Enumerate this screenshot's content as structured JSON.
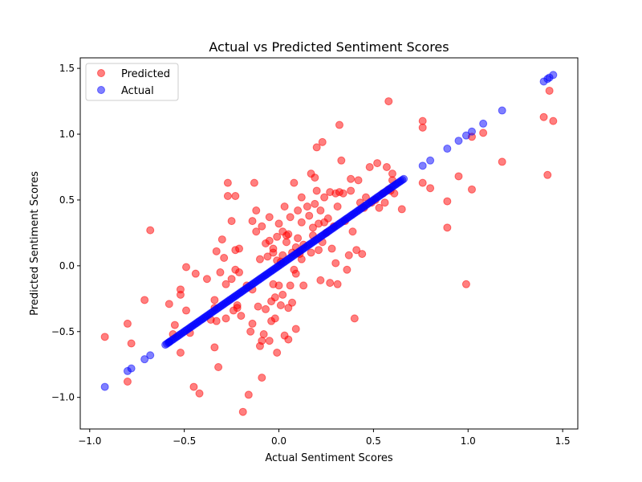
{
  "chart_data": {
    "type": "scatter",
    "title": "Actual vs Predicted Sentiment Scores",
    "xlabel": "Actual Sentiment Scores",
    "ylabel": "Predicted Sentiment Scores",
    "xlim": [
      -1.05,
      1.58
    ],
    "ylim": [
      -1.24,
      1.58
    ],
    "xticks": [
      -1.0,
      -0.5,
      0.0,
      0.5,
      1.0,
      1.5
    ],
    "yticks": [
      -1.0,
      -0.5,
      0.0,
      0.5,
      1.0,
      1.5
    ],
    "xtick_labels": [
      "−1.0",
      "−0.5",
      "0.0",
      "0.5",
      "1.0",
      "1.5"
    ],
    "ytick_labels": [
      "−1.0",
      "−0.5",
      "0.0",
      "0.5",
      "1.0",
      "1.5"
    ],
    "grid": false,
    "legend_position": "top-left",
    "series": [
      {
        "name": "Predicted",
        "color": "#ff0000",
        "opacity": 0.5,
        "points": [
          [
            -0.92,
            -0.54
          ],
          [
            -0.8,
            -0.44
          ],
          [
            -0.8,
            -0.88
          ],
          [
            -0.78,
            -0.59
          ],
          [
            -0.71,
            -0.26
          ],
          [
            -0.68,
            0.27
          ],
          [
            -0.58,
            -0.29
          ],
          [
            -0.56,
            -0.52
          ],
          [
            -0.55,
            -0.45
          ],
          [
            -0.52,
            -0.66
          ],
          [
            -0.52,
            -0.18
          ],
          [
            -0.52,
            -0.22
          ],
          [
            -0.49,
            -0.34
          ],
          [
            -0.49,
            -0.01
          ],
          [
            -0.47,
            -0.51
          ],
          [
            -0.45,
            -0.92
          ],
          [
            -0.44,
            -0.06
          ],
          [
            -0.42,
            -0.97
          ],
          [
            -0.38,
            -0.1
          ],
          [
            -0.36,
            -0.41
          ],
          [
            -0.34,
            -0.32
          ],
          [
            -0.34,
            -0.62
          ],
          [
            -0.34,
            -0.26
          ],
          [
            -0.33,
            0.11
          ],
          [
            -0.33,
            -0.42
          ],
          [
            -0.32,
            -0.77
          ],
          [
            -0.31,
            -0.05
          ],
          [
            -0.3,
            0.2
          ],
          [
            -0.29,
            0.06
          ],
          [
            -0.28,
            -0.14
          ],
          [
            -0.28,
            -0.4
          ],
          [
            -0.27,
            0.53
          ],
          [
            -0.27,
            0.63
          ],
          [
            -0.25,
            -0.1
          ],
          [
            -0.25,
            0.34
          ],
          [
            -0.24,
            -0.34
          ],
          [
            -0.23,
            -0.03
          ],
          [
            -0.23,
            0.12
          ],
          [
            -0.23,
            0.53
          ],
          [
            -0.22,
            -0.3
          ],
          [
            -0.22,
            -0.32
          ],
          [
            -0.21,
            -0.05
          ],
          [
            -0.21,
            0.13
          ],
          [
            -0.2,
            -0.38
          ],
          [
            -0.19,
            -1.11
          ],
          [
            -0.17,
            -0.15
          ],
          [
            -0.16,
            -0.98
          ],
          [
            -0.15,
            -0.5
          ],
          [
            -0.14,
            0.34
          ],
          [
            -0.14,
            -0.18
          ],
          [
            -0.14,
            -0.44
          ],
          [
            -0.13,
            0.63
          ],
          [
            -0.12,
            0.42
          ],
          [
            -0.12,
            0.26
          ],
          [
            -0.11,
            -0.31
          ],
          [
            -0.1,
            -0.61
          ],
          [
            -0.1,
            0.05
          ],
          [
            -0.09,
            -0.57
          ],
          [
            -0.09,
            -0.85
          ],
          [
            -0.09,
            0.3
          ],
          [
            -0.08,
            -0.52
          ],
          [
            -0.07,
            0.17
          ],
          [
            -0.07,
            -0.33
          ],
          [
            -0.06,
            0.07
          ],
          [
            -0.05,
            -0.57
          ],
          [
            -0.05,
            0.19
          ],
          [
            -0.05,
            0.37
          ],
          [
            -0.04,
            -0.27
          ],
          [
            -0.04,
            -0.42
          ],
          [
            -0.03,
            -0.14
          ],
          [
            -0.03,
            0.1
          ],
          [
            -0.03,
            0.13
          ],
          [
            -0.02,
            -0.24
          ],
          [
            -0.02,
            -0.4
          ],
          [
            -0.01,
            0.04
          ],
          [
            -0.01,
            -0.66
          ],
          [
            -0.01,
            0.22
          ],
          [
            0.0,
            -0.15
          ],
          [
            0.0,
            0.32
          ],
          [
            0.01,
            -0.3
          ],
          [
            0.01,
            0.03
          ],
          [
            0.02,
            0.26
          ],
          [
            0.02,
            -0.22
          ],
          [
            0.02,
            0.08
          ],
          [
            0.03,
            -0.53
          ],
          [
            0.03,
            0.45
          ],
          [
            0.04,
            0.23
          ],
          [
            0.04,
            0.18
          ],
          [
            0.05,
            -0.56
          ],
          [
            0.05,
            -0.32
          ],
          [
            0.05,
            0.24
          ],
          [
            0.06,
            -0.15
          ],
          [
            0.06,
            0.37
          ],
          [
            0.07,
            -0.28
          ],
          [
            0.07,
            0.1
          ],
          [
            0.08,
            0.63
          ],
          [
            0.08,
            -0.03
          ],
          [
            0.09,
            0.14
          ],
          [
            0.09,
            -0.48
          ],
          [
            0.09,
            -0.06
          ],
          [
            0.1,
            0.42
          ],
          [
            0.1,
            0.21
          ],
          [
            0.11,
            0.11
          ],
          [
            0.11,
            0.09
          ],
          [
            0.12,
            0.05
          ],
          [
            0.12,
            0.33
          ],
          [
            0.12,
            0.52
          ],
          [
            0.13,
            0.16
          ],
          [
            0.13,
            -0.15
          ],
          [
            0.15,
            0.45
          ],
          [
            0.16,
            0.38
          ],
          [
            0.17,
            0.7
          ],
          [
            0.17,
            0.1
          ],
          [
            0.18,
            0.29
          ],
          [
            0.18,
            0.23
          ],
          [
            0.19,
            0.67
          ],
          [
            0.19,
            0.47
          ],
          [
            0.2,
            0.57
          ],
          [
            0.2,
            0.9
          ],
          [
            0.21,
            0.12
          ],
          [
            0.21,
            0.32
          ],
          [
            0.22,
            -0.11
          ],
          [
            0.22,
            0.42
          ],
          [
            0.23,
            0.18
          ],
          [
            0.23,
            0.94
          ],
          [
            0.24,
            0.52
          ],
          [
            0.24,
            0.33
          ],
          [
            0.25,
            0.25
          ],
          [
            0.26,
            0.36
          ],
          [
            0.27,
            -0.13
          ],
          [
            0.27,
            0.56
          ],
          [
            0.28,
            0.13
          ],
          [
            0.29,
            0.3
          ],
          [
            0.3,
            0.02
          ],
          [
            0.3,
            0.55
          ],
          [
            0.31,
            -0.14
          ],
          [
            0.31,
            0.45
          ],
          [
            0.32,
            1.07
          ],
          [
            0.32,
            0.56
          ],
          [
            0.33,
            0.8
          ],
          [
            0.34,
            0.55
          ],
          [
            0.35,
            0.34
          ],
          [
            0.36,
            -0.03
          ],
          [
            0.37,
            0.08
          ],
          [
            0.38,
            0.66
          ],
          [
            0.38,
            0.57
          ],
          [
            0.39,
            0.26
          ],
          [
            0.4,
            -0.4
          ],
          [
            0.41,
            0.12
          ],
          [
            0.42,
            0.65
          ],
          [
            0.43,
            0.48
          ],
          [
            0.44,
            0.09
          ],
          [
            0.45,
            0.44
          ],
          [
            0.46,
            0.52
          ],
          [
            0.48,
            0.75
          ],
          [
            0.49,
            0.48
          ],
          [
            0.51,
            0.5
          ],
          [
            0.52,
            0.78
          ],
          [
            0.53,
            0.44
          ],
          [
            0.55,
            0.55
          ],
          [
            0.56,
            0.48
          ],
          [
            0.57,
            0.75
          ],
          [
            0.58,
            1.25
          ],
          [
            0.58,
            0.58
          ],
          [
            0.59,
            0.57
          ],
          [
            0.6,
            0.7
          ],
          [
            0.6,
            0.65
          ],
          [
            0.61,
            0.55
          ],
          [
            0.65,
            0.43
          ],
          [
            0.76,
            1.1
          ],
          [
            0.76,
            1.05
          ],
          [
            0.76,
            0.63
          ],
          [
            0.8,
            0.59
          ],
          [
            0.89,
            0.49
          ],
          [
            0.89,
            0.29
          ],
          [
            0.95,
            0.68
          ],
          [
            0.99,
            -0.14
          ],
          [
            1.02,
            0.58
          ],
          [
            1.02,
            0.98
          ],
          [
            1.08,
            1.01
          ],
          [
            1.18,
            0.79
          ],
          [
            1.4,
            1.13
          ],
          [
            1.42,
            0.69
          ],
          [
            1.43,
            1.33
          ],
          [
            1.45,
            1.1
          ]
        ]
      },
      {
        "name": "Actual",
        "color": "#0000ff",
        "opacity": 0.5,
        "line": {
          "x_start": -0.92,
          "x_end": 1.45,
          "count": 170
        },
        "extra_points": [
          [
            -0.92,
            -0.92
          ],
          [
            -0.8,
            -0.8
          ],
          [
            -0.78,
            -0.78
          ],
          [
            -0.71,
            -0.71
          ],
          [
            -0.68,
            -0.68
          ],
          [
            -0.58,
            -0.58
          ],
          [
            0.76,
            0.76
          ],
          [
            0.8,
            0.8
          ],
          [
            0.89,
            0.89
          ],
          [
            0.95,
            0.95
          ],
          [
            0.99,
            0.99
          ],
          [
            1.02,
            1.02
          ],
          [
            1.08,
            1.08
          ],
          [
            1.18,
            1.18
          ],
          [
            1.4,
            1.4
          ],
          [
            1.42,
            1.42
          ],
          [
            1.43,
            1.43
          ],
          [
            1.45,
            1.45
          ]
        ]
      }
    ]
  }
}
